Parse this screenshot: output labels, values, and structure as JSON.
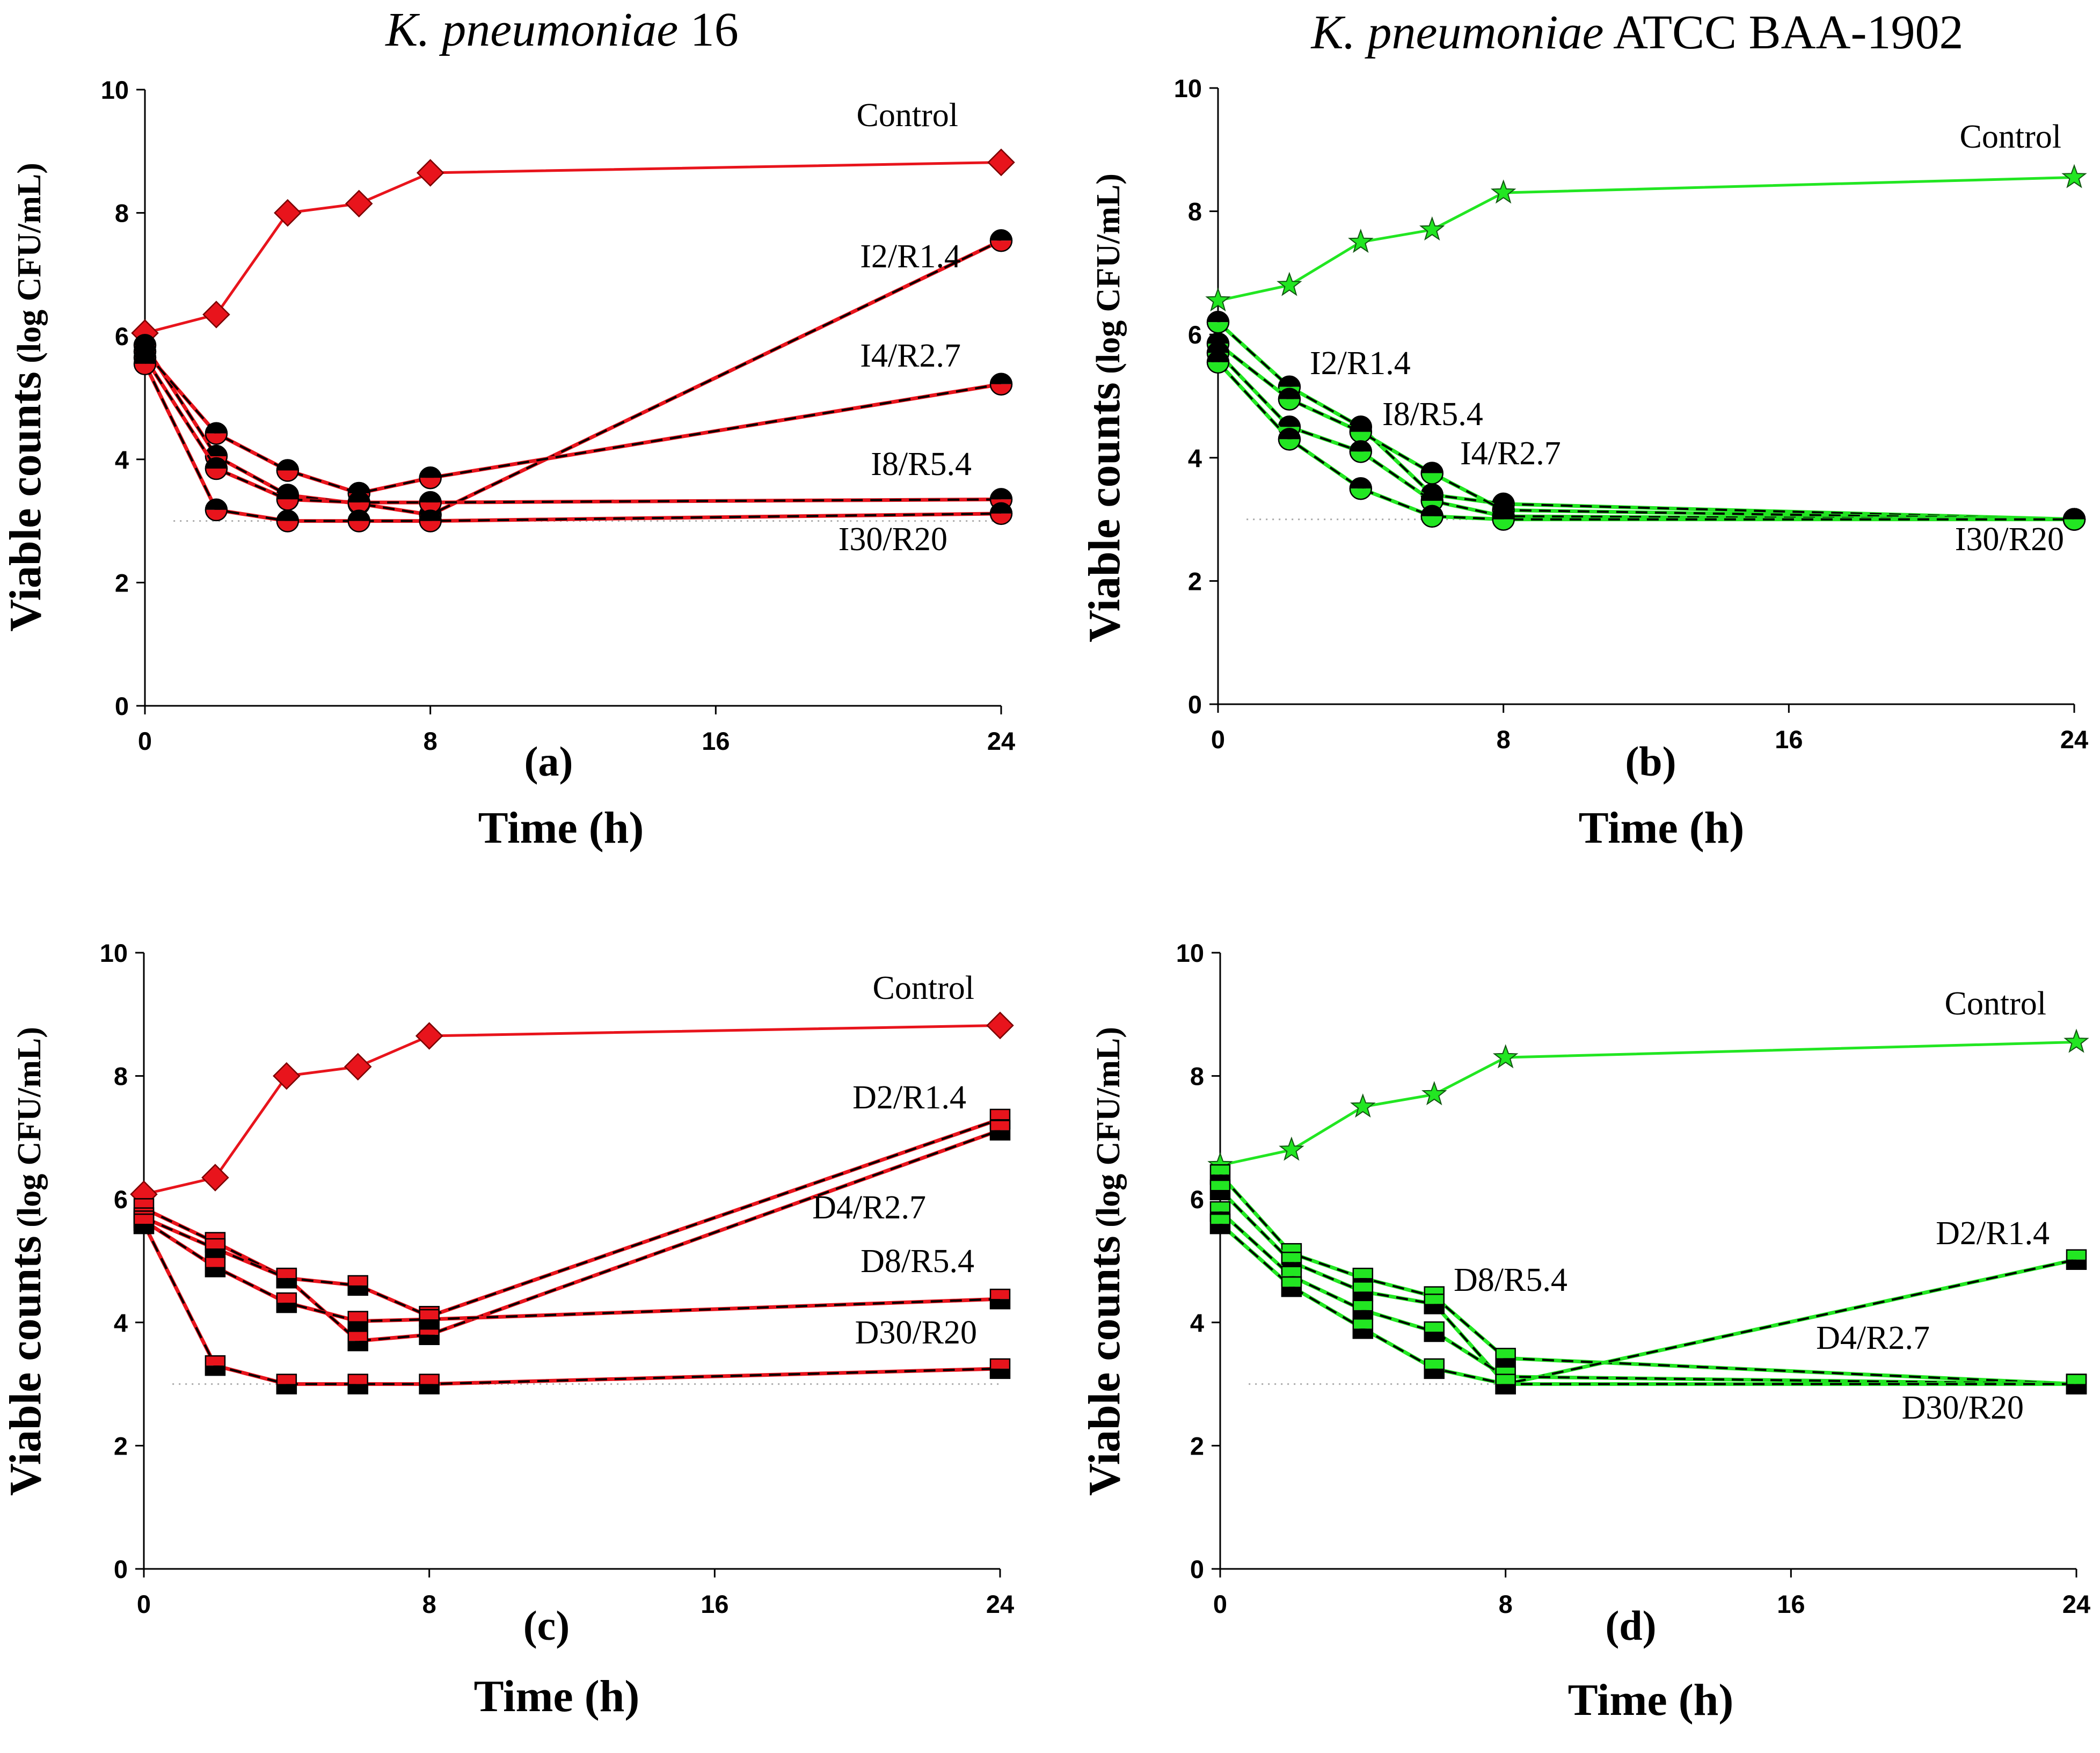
{
  "figure": {
    "titles": [
      {
        "italic": "K. pneumoniae",
        "rest": " 16"
      },
      {
        "italic": "K. pneumoniae",
        "rest": " ATCC BAA-1902"
      }
    ]
  },
  "colors": {
    "red": "#e8141c",
    "green": "#22e622",
    "black": "#000000",
    "dotted": "#aaaaaa"
  },
  "chart_data": [
    {
      "id": "a",
      "type": "line",
      "panel_label": "(a)",
      "xlabel": "Time (h)",
      "ylabel_big": "Viable counts",
      "ylabel_small": " (log CFU/mL)",
      "xlim": [
        0,
        24
      ],
      "ylim": [
        0,
        10
      ],
      "xticks": [
        "0",
        "8",
        "16",
        "24"
      ],
      "yticks": [
        "0",
        "2",
        "4",
        "6",
        "8",
        "10"
      ],
      "x": [
        0,
        2,
        4,
        6,
        8,
        24
      ],
      "detection_limit": 3.0,
      "series": [
        {
          "name": "Control",
          "label": "Control",
          "style": "control",
          "marker": "diamond",
          "values": [
            6.05,
            6.35,
            8.0,
            8.15,
            8.65,
            8.82
          ]
        },
        {
          "name": "I2/R1.4",
          "label": "I2/R1.4",
          "style": "treat",
          "marker": "circle",
          "values": [
            5.85,
            4.05,
            3.42,
            3.28,
            3.1,
            7.55
          ]
        },
        {
          "name": "I4/R2.7",
          "label": "I4/R2.7",
          "style": "treat",
          "marker": "circle",
          "values": [
            5.75,
            4.42,
            3.82,
            3.45,
            3.7,
            5.22
          ]
        },
        {
          "name": "I8/R5.4",
          "label": "I8/R5.4",
          "style": "treat",
          "marker": "circle",
          "values": [
            5.65,
            3.85,
            3.35,
            3.3,
            3.3,
            3.35
          ]
        },
        {
          "name": "I30/R20",
          "label": "I30/R20",
          "style": "treat",
          "marker": "circle",
          "values": [
            5.55,
            3.18,
            3.0,
            3.0,
            3.0,
            3.12
          ]
        }
      ]
    },
    {
      "id": "b",
      "type": "line",
      "panel_label": "(b)",
      "xlabel": "Time (h)",
      "ylabel_big": "Viable counts",
      "ylabel_small": " (log CFU/mL)",
      "xlim": [
        0,
        24
      ],
      "ylim": [
        0,
        10
      ],
      "xticks": [
        "0",
        "8",
        "16",
        "24"
      ],
      "yticks": [
        "0",
        "2",
        "4",
        "6",
        "8",
        "10"
      ],
      "x": [
        0,
        2,
        4,
        6,
        8,
        24
      ],
      "detection_limit": 3.0,
      "series": [
        {
          "name": "Control",
          "label": "Control",
          "style": "control",
          "marker": "star",
          "values": [
            6.55,
            6.8,
            7.5,
            7.7,
            8.3,
            8.55
          ]
        },
        {
          "name": "I2/R1.4",
          "label": "I2/R1.4",
          "style": "treat",
          "marker": "circle",
          "values": [
            6.2,
            5.15,
            4.5,
            3.4,
            3.25,
            3.0
          ]
        },
        {
          "name": "I8/R5.4",
          "label": "I8/R5.4",
          "style": "treat",
          "marker": "circle",
          "values": [
            5.85,
            4.95,
            4.42,
            3.75,
            3.15,
            3.0
          ]
        },
        {
          "name": "I4/R2.7",
          "label": "I4/R2.7",
          "style": "treat",
          "marker": "circle",
          "values": [
            5.7,
            4.5,
            4.1,
            3.3,
            3.05,
            3.0
          ]
        },
        {
          "name": "I30/R20",
          "label": "I30/R20",
          "style": "treat",
          "marker": "circle",
          "values": [
            5.55,
            4.3,
            3.5,
            3.05,
            3.0,
            3.0
          ]
        }
      ]
    },
    {
      "id": "c",
      "type": "line",
      "panel_label": "(c)",
      "xlabel": "Time (h)",
      "ylabel_big": "Viable counts",
      "ylabel_small": " (log CFU/mL)",
      "xlim": [
        0,
        24
      ],
      "ylim": [
        0,
        10
      ],
      "xticks": [
        "0",
        "8",
        "16",
        "24"
      ],
      "yticks": [
        "0",
        "2",
        "4",
        "6",
        "8",
        "10"
      ],
      "x": [
        0,
        2,
        4,
        6,
        8,
        24
      ],
      "detection_limit": 3.0,
      "series": [
        {
          "name": "Control",
          "label": "Control",
          "style": "control",
          "marker": "diamond",
          "values": [
            6.08,
            6.35,
            8.0,
            8.15,
            8.65,
            8.82
          ]
        },
        {
          "name": "D2/R1.4",
          "label": "D2/R1.4",
          "style": "treat",
          "marker": "square",
          "values": [
            5.85,
            5.3,
            4.72,
            4.6,
            4.1,
            7.3
          ]
        },
        {
          "name": "D4/R2.7",
          "label": "D4/R2.7",
          "style": "treat",
          "marker": "square",
          "values": [
            5.7,
            5.2,
            4.72,
            3.7,
            3.8,
            7.12
          ]
        },
        {
          "name": "D8/R5.4",
          "label": "D8/R5.4",
          "style": "treat",
          "marker": "square",
          "values": [
            5.65,
            4.9,
            4.32,
            4.02,
            4.05,
            4.38
          ]
        },
        {
          "name": "D30/R20",
          "label": "D30/R20",
          "style": "treat",
          "marker": "square",
          "values": [
            5.6,
            3.3,
            3.0,
            3.0,
            3.0,
            3.25
          ]
        }
      ]
    },
    {
      "id": "d",
      "type": "line",
      "panel_label": "(d)",
      "xlabel": "Time (h)",
      "ylabel_big": "Viable counts",
      "ylabel_small": " (log CFU/mL)",
      "xlim": [
        0,
        24
      ],
      "ylim": [
        0,
        10
      ],
      "xticks": [
        "0",
        "8",
        "16",
        "24"
      ],
      "yticks": [
        "0",
        "2",
        "4",
        "6",
        "8",
        "10"
      ],
      "x": [
        0,
        2,
        4,
        6,
        8,
        24
      ],
      "detection_limit": 3.0,
      "series": [
        {
          "name": "Control",
          "label": "Control",
          "style": "control",
          "marker": "star",
          "values": [
            6.55,
            6.8,
            7.5,
            7.7,
            8.3,
            8.55
          ]
        },
        {
          "name": "D8/R5.4",
          "label": "D8/R5.4",
          "style": "treat",
          "marker": "square",
          "values": [
            6.4,
            5.12,
            4.72,
            4.42,
            3.42,
            3.0
          ]
        },
        {
          "name": "D2/R1.4",
          "label": "D2/R1.4",
          "style": "treat",
          "marker": "square",
          "values": [
            6.15,
            4.98,
            4.5,
            4.3,
            3.0,
            5.02
          ]
        },
        {
          "name": "D4/R2.7",
          "label": "D4/R2.7",
          "style": "treat",
          "marker": "square",
          "values": [
            5.8,
            4.75,
            4.2,
            3.85,
            3.12,
            3.0
          ]
        },
        {
          "name": "D30/R20",
          "label": "D30/R20",
          "style": "treat",
          "marker": "square",
          "values": [
            5.6,
            4.58,
            3.9,
            3.25,
            3.0,
            3.0
          ]
        }
      ]
    }
  ]
}
